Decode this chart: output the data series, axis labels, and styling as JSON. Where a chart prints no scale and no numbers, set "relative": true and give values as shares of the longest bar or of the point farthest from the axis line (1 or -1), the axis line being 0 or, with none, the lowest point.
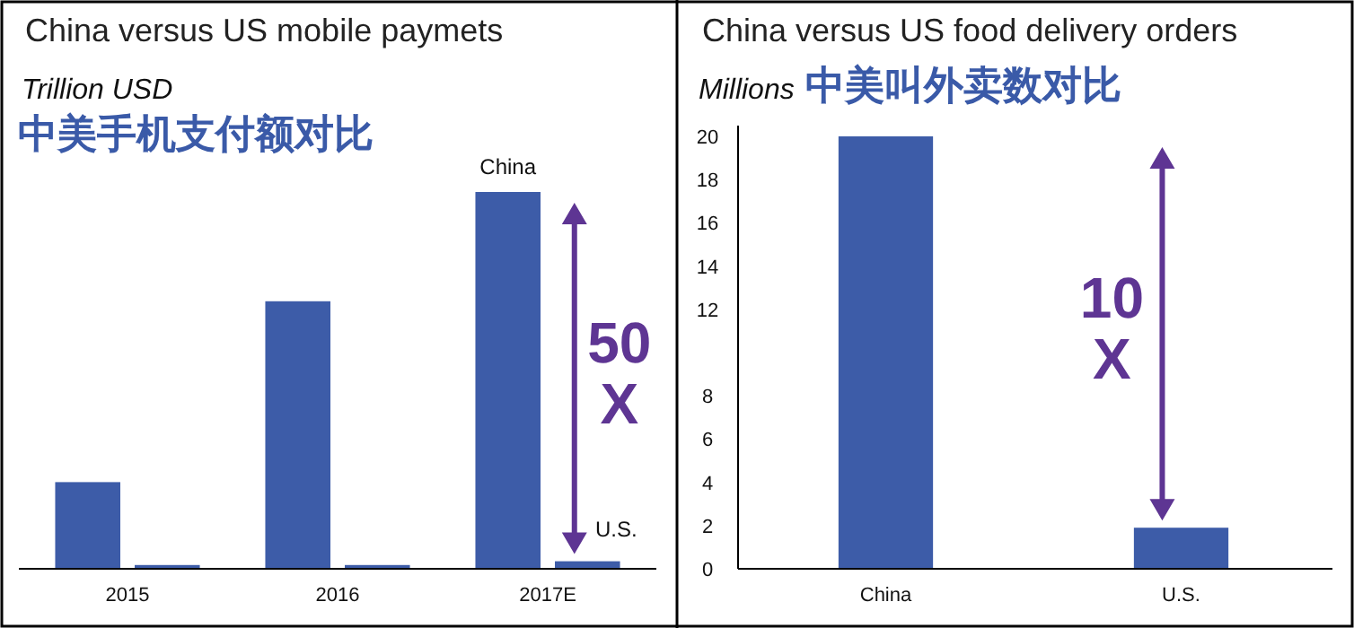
{
  "chart_data": [
    {
      "type": "bar",
      "title": "China versus US mobile paymets",
      "ylabel": "Trillion USD",
      "subtitle": "中美手机支付额对比",
      "relative": true,
      "categories": [
        "2015",
        "2016",
        "2017E"
      ],
      "series": [
        {
          "name": "China",
          "color": "#3d5ca8",
          "values": [
            0.23,
            0.71,
            1
          ]
        },
        {
          "name": "U.S.",
          "color": "#3d5ca8",
          "values": [
            0.01,
            0.01,
            0.02
          ]
        }
      ],
      "annotations": [
        "50\nX"
      ]
    },
    {
      "type": "bar",
      "title": "China versus US food delivery orders",
      "ylabel": "Millions",
      "subtitle": "中美叫外卖数对比",
      "categories": [
        "China",
        "U.S."
      ],
      "values": [
        20,
        1.9
      ],
      "color": "#3d5ca8",
      "ylim": [
        0,
        20
      ],
      "yticks": [
        0,
        2,
        4,
        6,
        8,
        12,
        14,
        16,
        18,
        20
      ],
      "annotations": [
        "10\nX"
      ]
    }
  ]
}
